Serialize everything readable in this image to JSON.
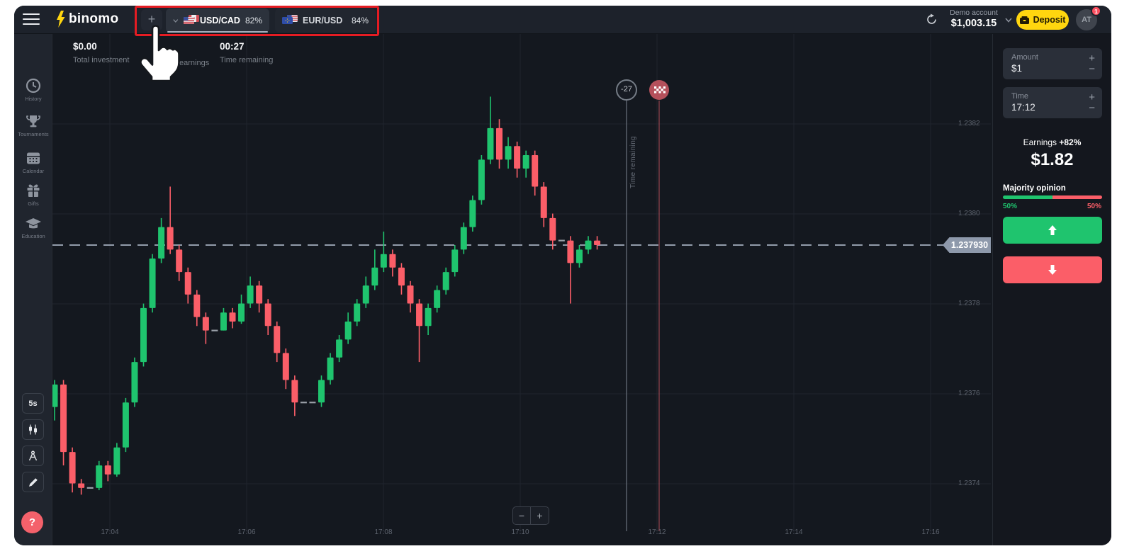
{
  "topbar": {
    "logo": "binomo",
    "add_asset": "+",
    "tabs": [
      {
        "pair": "USD/CAD",
        "payout": "82%"
      },
      {
        "pair": "EUR/USD",
        "payout": "84%"
      }
    ],
    "account": {
      "type": "Demo account",
      "balance": "$1,003.15"
    },
    "deposit": "Deposit",
    "avatar": "AT",
    "badge": "1"
  },
  "sidebar": {
    "items": [
      {
        "label": "History"
      },
      {
        "label": "Tournaments"
      },
      {
        "label": "Calendar"
      },
      {
        "label": "Gifts"
      },
      {
        "label": "Education"
      }
    ],
    "timeframe": "5s",
    "help": "?"
  },
  "stats": {
    "investment_value": "$0.00",
    "investment_label": "Total investment",
    "earnings_label": "earnings",
    "time_value": "00:27",
    "time_label": "Time remaining"
  },
  "chart": {
    "countdown": "-27",
    "axis_label": "Time remaining",
    "price_tag": "1.237930",
    "zoom_out": "−",
    "zoom_in": "+",
    "price_labels": [
      {
        "text": "1.2382"
      },
      {
        "text": "1.2380"
      },
      {
        "text": "1.2378"
      },
      {
        "text": "1.2376"
      },
      {
        "text": "1.2374"
      }
    ],
    "time_labels": [
      {
        "text": "17:04"
      },
      {
        "text": "17:06"
      },
      {
        "text": "17:08"
      },
      {
        "text": "17:10"
      },
      {
        "text": "17:12"
      },
      {
        "text": "17:14"
      },
      {
        "text": "17:16"
      }
    ]
  },
  "panel": {
    "amount_label": "Amount",
    "amount_value": "$1",
    "time_label": "Time",
    "time_value": "17:12",
    "plus": "+",
    "minus": "−",
    "earnings_label": "Earnings",
    "earnings_pct": "+82%",
    "earnings_value": "$1.82",
    "majority_label": "Majority opinion",
    "up_pct": "50%",
    "down_pct": "50%"
  },
  "colors": {
    "green": "#1fc46e",
    "red": "#fb5e68",
    "doji": "#9aa0a8",
    "grid": "#1f242d",
    "dashed": "#939cab",
    "gray_line": "#5f6570",
    "red_line": "#b4505b",
    "yellow": "#ffd60f",
    "highlight": "#e51c23"
  },
  "chart_data": {
    "type": "candlestick",
    "pair": "USD/CAD",
    "timeframe": "5s",
    "price_ticks": [
      1.2382,
      1.238,
      1.2378,
      1.2376,
      1.2374
    ],
    "time_ticks": [
      "17:04",
      "17:06",
      "17:08",
      "17:10",
      "17:12",
      "17:14",
      "17:16"
    ],
    "current_price": 1.23793,
    "candles": [
      [
        1.23757,
        1.23763,
        1.23754,
        1.23762
      ],
      [
        1.23762,
        1.23763,
        1.23744,
        1.23747
      ],
      [
        1.23747,
        1.23748,
        1.23738,
        1.2374
      ],
      [
        1.2374,
        1.23741,
        1.237375,
        1.23739
      ],
      [
        1.23739,
        1.237415,
        1.23738,
        1.237392
      ],
      [
        1.23739,
        1.23745,
        1.237385,
        1.23744
      ],
      [
        1.23744,
        1.23745,
        1.237405,
        1.23742
      ],
      [
        1.23742,
        1.23749,
        1.237415,
        1.23748
      ],
      [
        1.23748,
        1.23759,
        1.23747,
        1.23758
      ],
      [
        1.23758,
        1.23768,
        1.23757,
        1.23767
      ],
      [
        1.23767,
        1.2378,
        1.23766,
        1.23779
      ],
      [
        1.23779,
        1.23791,
        1.23778,
        1.2379
      ],
      [
        1.2379,
        1.23799,
        1.23789,
        1.23797
      ],
      [
        1.23797,
        1.23806,
        1.23791,
        1.23792
      ],
      [
        1.23792,
        1.23793,
        1.23785,
        1.23787
      ],
      [
        1.23787,
        1.23788,
        1.2378,
        1.23782
      ],
      [
        1.23782,
        1.23783,
        1.23775,
        1.23777
      ],
      [
        1.23777,
        1.23778,
        1.23771,
        1.23774
      ],
      [
        1.23774,
        1.23776,
        1.23773,
        1.237742
      ],
      [
        1.23774,
        1.23779,
        1.23774,
        1.23778
      ],
      [
        1.23778,
        1.23779,
        1.237745,
        1.23776
      ],
      [
        1.23776,
        1.23782,
        1.237755,
        1.2378
      ],
      [
        1.2378,
        1.23786,
        1.23779,
        1.23784
      ],
      [
        1.23784,
        1.23785,
        1.23778,
        1.2378
      ],
      [
        1.2378,
        1.23781,
        1.23773,
        1.23775
      ],
      [
        1.23775,
        1.23776,
        1.23767,
        1.23769
      ],
      [
        1.23769,
        1.2377,
        1.23761,
        1.23763
      ],
      [
        1.23763,
        1.23764,
        1.23755,
        1.23758
      ],
      [
        1.23758,
        1.2376,
        1.23756,
        1.237582
      ],
      [
        1.23758,
        1.2376,
        1.23756,
        1.237578
      ],
      [
        1.23758,
        1.23764,
        1.23757,
        1.23763
      ],
      [
        1.23763,
        1.23769,
        1.23762,
        1.23768
      ],
      [
        1.23768,
        1.23773,
        1.23767,
        1.23772
      ],
      [
        1.23772,
        1.23778,
        1.23771,
        1.23776
      ],
      [
        1.23776,
        1.23781,
        1.23775,
        1.2378
      ],
      [
        1.2378,
        1.23786,
        1.23779,
        1.23784
      ],
      [
        1.23784,
        1.23792,
        1.23783,
        1.23788
      ],
      [
        1.23788,
        1.23796,
        1.23787,
        1.23791
      ],
      [
        1.23791,
        1.23792,
        1.23786,
        1.23788
      ],
      [
        1.23788,
        1.23789,
        1.23782,
        1.23784
      ],
      [
        1.23784,
        1.23785,
        1.23778,
        1.2378
      ],
      [
        1.2378,
        1.23781,
        1.23767,
        1.23775
      ],
      [
        1.23775,
        1.2378,
        1.23773,
        1.23779
      ],
      [
        1.23779,
        1.23784,
        1.23778,
        1.23783
      ],
      [
        1.23783,
        1.23788,
        1.23782,
        1.23787
      ],
      [
        1.23787,
        1.23793,
        1.23786,
        1.23792
      ],
      [
        1.23792,
        1.23798,
        1.23791,
        1.23797
      ],
      [
        1.23797,
        1.23804,
        1.23796,
        1.23803
      ],
      [
        1.23803,
        1.23813,
        1.23802,
        1.23812
      ],
      [
        1.23812,
        1.23826,
        1.23811,
        1.23819
      ],
      [
        1.23819,
        1.23821,
        1.2381,
        1.23812
      ],
      [
        1.23812,
        1.23817,
        1.2381,
        1.23815
      ],
      [
        1.23815,
        1.23816,
        1.23808,
        1.2381
      ],
      [
        1.2381,
        1.23814,
        1.23808,
        1.23813
      ],
      [
        1.23813,
        1.23814,
        1.23804,
        1.23806
      ],
      [
        1.23806,
        1.23807,
        1.23797,
        1.23799
      ],
      [
        1.23799,
        1.238,
        1.23792,
        1.23794
      ],
      [
        1.23794,
        1.23795,
        1.23786,
        1.237942
      ],
      [
        1.23794,
        1.23795,
        1.2378,
        1.23789
      ],
      [
        1.23789,
        1.23793,
        1.23788,
        1.23792
      ],
      [
        1.23792,
        1.23795,
        1.23791,
        1.23794
      ],
      [
        1.23794,
        1.23795,
        1.23792,
        1.23793
      ]
    ]
  }
}
